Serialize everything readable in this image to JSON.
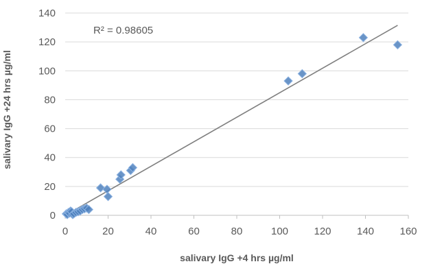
{
  "chart_data": {
    "type": "scatter",
    "xlabel": "salivary IgG +4 hrs µg/ml",
    "ylabel": "salivary IgG +24 hrs µg/ml",
    "xlim": [
      0,
      160
    ],
    "ylim": [
      0,
      140
    ],
    "x_ticks": [
      "0",
      "20",
      "40",
      "60",
      "80",
      "100",
      "120",
      "140",
      "160"
    ],
    "y_ticks": [
      "0",
      "20",
      "40",
      "60",
      "80",
      "100",
      "120",
      "140"
    ],
    "grid": "horizontal",
    "legend": "none",
    "annotation": "R² = 0.98605",
    "marker_color": "#4f81bd",
    "trendline_color": "#7f7f7f",
    "trendline": {
      "x": [
        0,
        155
      ],
      "y": [
        0,
        131.5
      ]
    },
    "series": [
      {
        "x": [
          0.5,
          1,
          1.5,
          2,
          2.5,
          3,
          3.5,
          4,
          5,
          6,
          7,
          8,
          9,
          10,
          11,
          16.5,
          19.5,
          20,
          25.5,
          26,
          30.5,
          31.5,
          104,
          110.5,
          139,
          155
        ],
        "y": [
          1,
          0.5,
          2,
          1.5,
          3,
          2.5,
          0.5,
          1,
          2,
          2.5,
          3,
          4,
          4.5,
          5,
          4,
          19,
          18,
          13,
          25,
          28,
          31,
          33,
          93,
          98,
          123,
          118
        ]
      }
    ]
  }
}
